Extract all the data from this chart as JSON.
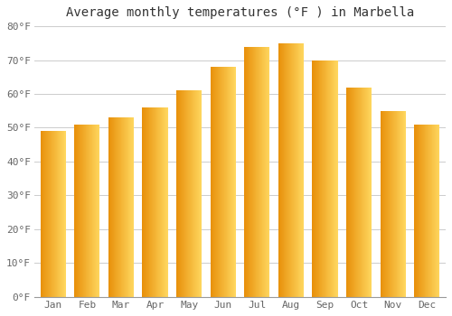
{
  "title": "Average monthly temperatures (°F ) in Marbella",
  "months": [
    "Jan",
    "Feb",
    "Mar",
    "Apr",
    "May",
    "Jun",
    "Jul",
    "Aug",
    "Sep",
    "Oct",
    "Nov",
    "Dec"
  ],
  "values": [
    49,
    51,
    53,
    56,
    61,
    68,
    74,
    75,
    70,
    62,
    55,
    51
  ],
  "bar_color_left": "#E8900A",
  "bar_color_right": "#FFD860",
  "ylim": [
    0,
    80
  ],
  "yticks": [
    0,
    10,
    20,
    30,
    40,
    50,
    60,
    70,
    80
  ],
  "ytick_labels": [
    "0°F",
    "10°F",
    "20°F",
    "30°F",
    "40°F",
    "50°F",
    "60°F",
    "70°F",
    "80°F"
  ],
  "background_color": "#FFFFFF",
  "grid_color": "#CCCCCC",
  "title_fontsize": 10,
  "tick_fontsize": 8,
  "title_color": "#333333",
  "tick_color": "#666666",
  "bar_width": 0.75
}
